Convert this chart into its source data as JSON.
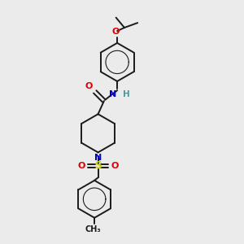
{
  "bg_color": "#ebebeb",
  "bond_color": "#1a1a1a",
  "N_color": "#0000cc",
  "O_color": "#dd0000",
  "S_color": "#cccc00",
  "H_color": "#4a9a9a",
  "figsize": [
    3.0,
    3.0
  ],
  "dpi": 100,
  "xlim": [
    0,
    10
  ],
  "ylim": [
    0,
    10
  ]
}
